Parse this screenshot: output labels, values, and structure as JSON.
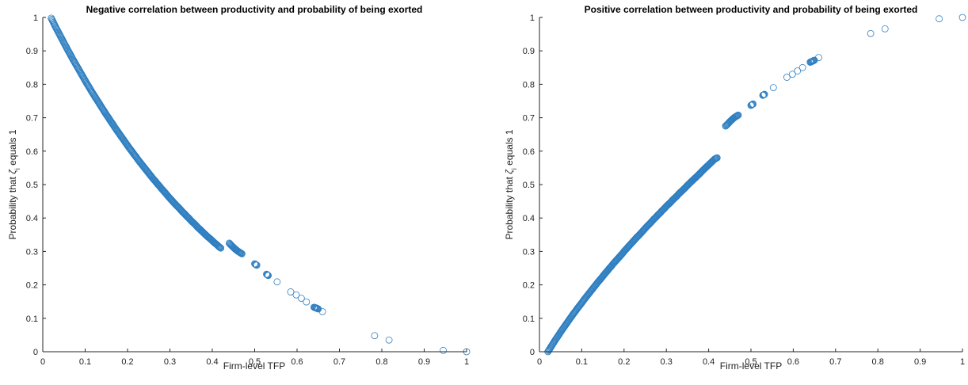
{
  "chart_data": [
    {
      "type": "scatter",
      "title": "Negative correlation between productivity and probability of being exorted",
      "xlabel": "Firm-level TFP",
      "ylabel_prefix": "Probability that",
      "ylabel_symbol": "ζ",
      "ylabel_subscript": "i",
      "ylabel_suffix": "equals 1",
      "xlim": [
        0,
        1
      ],
      "ylim": [
        0,
        1
      ],
      "xticks": [
        "0",
        "0.1",
        "0.2",
        "0.3",
        "0.4",
        "0.5",
        "0.6",
        "0.7",
        "0.8",
        "0.9",
        "1"
      ],
      "yticks": [
        "0",
        "0.1",
        "0.2",
        "0.3",
        "0.4",
        "0.5",
        "0.6",
        "0.7",
        "0.8",
        "0.9",
        "1"
      ],
      "marker_color": "#2f7fc1",
      "points": [
        [
          0.02,
          0.998
        ],
        [
          0.025,
          0.985
        ],
        [
          0.03,
          0.972
        ],
        [
          0.035,
          0.96
        ],
        [
          0.04,
          0.948
        ],
        [
          0.045,
          0.936
        ],
        [
          0.05,
          0.924
        ],
        [
          0.055,
          0.912
        ],
        [
          0.06,
          0.9
        ],
        [
          0.065,
          0.889
        ],
        [
          0.07,
          0.877
        ],
        [
          0.075,
          0.866
        ],
        [
          0.08,
          0.855
        ],
        [
          0.085,
          0.844
        ],
        [
          0.09,
          0.833
        ],
        [
          0.095,
          0.822
        ],
        [
          0.1,
          0.811
        ],
        [
          0.105,
          0.8
        ],
        [
          0.11,
          0.79
        ],
        [
          0.115,
          0.779
        ],
        [
          0.12,
          0.769
        ],
        [
          0.125,
          0.759
        ],
        [
          0.13,
          0.749
        ],
        [
          0.135,
          0.739
        ],
        [
          0.14,
          0.729
        ],
        [
          0.145,
          0.719
        ],
        [
          0.15,
          0.709
        ],
        [
          0.155,
          0.7
        ],
        [
          0.16,
          0.69
        ],
        [
          0.165,
          0.681
        ],
        [
          0.17,
          0.671
        ],
        [
          0.175,
          0.662
        ],
        [
          0.18,
          0.653
        ],
        [
          0.185,
          0.644
        ],
        [
          0.19,
          0.635
        ],
        [
          0.195,
          0.626
        ],
        [
          0.2,
          0.617
        ],
        [
          0.205,
          0.608
        ],
        [
          0.21,
          0.6
        ],
        [
          0.215,
          0.591
        ],
        [
          0.22,
          0.583
        ],
        [
          0.225,
          0.574
        ],
        [
          0.23,
          0.566
        ],
        [
          0.235,
          0.558
        ],
        [
          0.24,
          0.55
        ],
        [
          0.245,
          0.542
        ],
        [
          0.25,
          0.534
        ],
        [
          0.255,
          0.526
        ],
        [
          0.26,
          0.518
        ],
        [
          0.265,
          0.511
        ],
        [
          0.27,
          0.503
        ],
        [
          0.275,
          0.496
        ],
        [
          0.28,
          0.488
        ],
        [
          0.285,
          0.481
        ],
        [
          0.29,
          0.474
        ],
        [
          0.295,
          0.466
        ],
        [
          0.3,
          0.459
        ],
        [
          0.305,
          0.452
        ],
        [
          0.31,
          0.445
        ],
        [
          0.315,
          0.438
        ],
        [
          0.32,
          0.432
        ],
        [
          0.325,
          0.425
        ],
        [
          0.33,
          0.418
        ],
        [
          0.335,
          0.412
        ],
        [
          0.34,
          0.405
        ],
        [
          0.345,
          0.399
        ],
        [
          0.35,
          0.392
        ],
        [
          0.355,
          0.386
        ],
        [
          0.36,
          0.38
        ],
        [
          0.365,
          0.373
        ],
        [
          0.37,
          0.367
        ],
        [
          0.375,
          0.361
        ],
        [
          0.38,
          0.355
        ],
        [
          0.385,
          0.349
        ],
        [
          0.39,
          0.343
        ],
        [
          0.395,
          0.338
        ],
        [
          0.4,
          0.332
        ],
        [
          0.405,
          0.326
        ],
        [
          0.41,
          0.321
        ],
        [
          0.415,
          0.315
        ],
        [
          0.42,
          0.31
        ],
        [
          0.44,
          0.325
        ],
        [
          0.445,
          0.318
        ],
        [
          0.45,
          0.312
        ],
        [
          0.455,
          0.306
        ],
        [
          0.46,
          0.301
        ],
        [
          0.465,
          0.297
        ],
        [
          0.47,
          0.293
        ],
        [
          0.5,
          0.263
        ],
        [
          0.505,
          0.259
        ],
        [
          0.528,
          0.232
        ],
        [
          0.532,
          0.228
        ],
        [
          0.553,
          0.209
        ],
        [
          0.585,
          0.179
        ],
        [
          0.598,
          0.17
        ],
        [
          0.61,
          0.16
        ],
        [
          0.622,
          0.149
        ],
        [
          0.64,
          0.133
        ],
        [
          0.645,
          0.131
        ],
        [
          0.65,
          0.128
        ],
        [
          0.66,
          0.12
        ],
        [
          0.783,
          0.048
        ],
        [
          0.817,
          0.035
        ],
        [
          0.945,
          0.004
        ],
        [
          1.0,
          0.0
        ]
      ]
    },
    {
      "type": "scatter",
      "title": "Positive correlation between productivity and probability of being exorted",
      "xlabel": "Firm-level TFP",
      "ylabel_prefix": "Probability that",
      "ylabel_symbol": "ζ",
      "ylabel_subscript": "i",
      "ylabel_suffix": "equals 1",
      "xlim": [
        0,
        1
      ],
      "ylim": [
        0,
        1
      ],
      "xticks": [
        "0",
        "0.1",
        "0.2",
        "0.3",
        "0.4",
        "0.5",
        "0.6",
        "0.7",
        "0.8",
        "0.9",
        "1"
      ],
      "yticks": [
        "0",
        "0.1",
        "0.2",
        "0.3",
        "0.4",
        "0.5",
        "0.6",
        "0.7",
        "0.8",
        "0.9",
        "1"
      ],
      "marker_color": "#2f7fc1",
      "points": [
        [
          0.02,
          0.0
        ],
        [
          0.025,
          0.01
        ],
        [
          0.03,
          0.02
        ],
        [
          0.035,
          0.03
        ],
        [
          0.04,
          0.04
        ],
        [
          0.045,
          0.049
        ],
        [
          0.05,
          0.059
        ],
        [
          0.055,
          0.068
        ],
        [
          0.06,
          0.077
        ],
        [
          0.065,
          0.086
        ],
        [
          0.07,
          0.095
        ],
        [
          0.075,
          0.104
        ],
        [
          0.08,
          0.113
        ],
        [
          0.085,
          0.121
        ],
        [
          0.09,
          0.13
        ],
        [
          0.095,
          0.138
        ],
        [
          0.1,
          0.146
        ],
        [
          0.105,
          0.155
        ],
        [
          0.11,
          0.163
        ],
        [
          0.115,
          0.171
        ],
        [
          0.12,
          0.179
        ],
        [
          0.125,
          0.187
        ],
        [
          0.13,
          0.195
        ],
        [
          0.135,
          0.203
        ],
        [
          0.14,
          0.211
        ],
        [
          0.145,
          0.218
        ],
        [
          0.15,
          0.226
        ],
        [
          0.155,
          0.234
        ],
        [
          0.16,
          0.241
        ],
        [
          0.165,
          0.249
        ],
        [
          0.17,
          0.256
        ],
        [
          0.175,
          0.264
        ],
        [
          0.18,
          0.271
        ],
        [
          0.185,
          0.278
        ],
        [
          0.19,
          0.285
        ],
        [
          0.195,
          0.292
        ],
        [
          0.2,
          0.3
        ],
        [
          0.205,
          0.307
        ],
        [
          0.21,
          0.314
        ],
        [
          0.215,
          0.321
        ],
        [
          0.22,
          0.328
        ],
        [
          0.225,
          0.335
        ],
        [
          0.23,
          0.342
        ],
        [
          0.235,
          0.348
        ],
        [
          0.24,
          0.355
        ],
        [
          0.245,
          0.362
        ],
        [
          0.25,
          0.369
        ],
        [
          0.255,
          0.376
        ],
        [
          0.26,
          0.382
        ],
        [
          0.265,
          0.389
        ],
        [
          0.27,
          0.396
        ],
        [
          0.275,
          0.402
        ],
        [
          0.28,
          0.409
        ],
        [
          0.285,
          0.415
        ],
        [
          0.29,
          0.422
        ],
        [
          0.295,
          0.428
        ],
        [
          0.3,
          0.435
        ],
        [
          0.305,
          0.441
        ],
        [
          0.31,
          0.447
        ],
        [
          0.315,
          0.454
        ],
        [
          0.32,
          0.46
        ],
        [
          0.325,
          0.466
        ],
        [
          0.33,
          0.473
        ],
        [
          0.335,
          0.479
        ],
        [
          0.34,
          0.485
        ],
        [
          0.345,
          0.491
        ],
        [
          0.35,
          0.498
        ],
        [
          0.355,
          0.504
        ],
        [
          0.36,
          0.51
        ],
        [
          0.365,
          0.516
        ],
        [
          0.37,
          0.522
        ],
        [
          0.375,
          0.528
        ],
        [
          0.38,
          0.534
        ],
        [
          0.385,
          0.541
        ],
        [
          0.39,
          0.547
        ],
        [
          0.395,
          0.553
        ],
        [
          0.4,
          0.559
        ],
        [
          0.405,
          0.565
        ],
        [
          0.41,
          0.571
        ],
        [
          0.415,
          0.577
        ],
        [
          0.42,
          0.58
        ],
        [
          0.44,
          0.675
        ],
        [
          0.445,
          0.681
        ],
        [
          0.45,
          0.688
        ],
        [
          0.455,
          0.694
        ],
        [
          0.46,
          0.7
        ],
        [
          0.465,
          0.704
        ],
        [
          0.47,
          0.708
        ],
        [
          0.5,
          0.737
        ],
        [
          0.505,
          0.741
        ],
        [
          0.528,
          0.767
        ],
        [
          0.532,
          0.77
        ],
        [
          0.553,
          0.79
        ],
        [
          0.585,
          0.821
        ],
        [
          0.598,
          0.83
        ],
        [
          0.61,
          0.84
        ],
        [
          0.622,
          0.85
        ],
        [
          0.64,
          0.866
        ],
        [
          0.645,
          0.869
        ],
        [
          0.65,
          0.872
        ],
        [
          0.66,
          0.88
        ],
        [
          0.783,
          0.952
        ],
        [
          0.817,
          0.966
        ],
        [
          0.945,
          0.996
        ],
        [
          1.0,
          1.0
        ]
      ]
    }
  ]
}
